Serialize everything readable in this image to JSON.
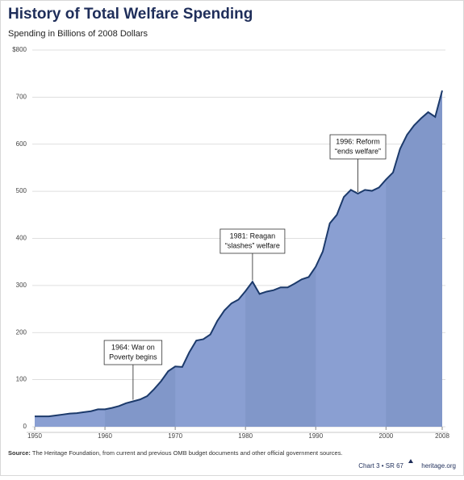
{
  "chart_data": {
    "type": "area",
    "title": "History of Total Welfare Spending",
    "subtitle": "Spending in Billions of 2008 Dollars",
    "x": [
      1950,
      1951,
      1952,
      1953,
      1954,
      1955,
      1956,
      1957,
      1958,
      1959,
      1960,
      1961,
      1962,
      1963,
      1964,
      1965,
      1966,
      1967,
      1968,
      1969,
      1970,
      1971,
      1972,
      1973,
      1974,
      1975,
      1976,
      1977,
      1978,
      1979,
      1980,
      1981,
      1982,
      1983,
      1984,
      1985,
      1986,
      1987,
      1988,
      1989,
      1990,
      1991,
      1992,
      1993,
      1994,
      1995,
      1996,
      1997,
      1998,
      1999,
      2000,
      2001,
      2002,
      2003,
      2004,
      2005,
      2006,
      2007,
      2008
    ],
    "values": [
      22,
      22,
      22,
      24,
      26,
      28,
      29,
      31,
      33,
      37,
      37,
      40,
      44,
      50,
      54,
      58,
      65,
      80,
      97,
      118,
      128,
      127,
      158,
      183,
      186,
      196,
      225,
      247,
      262,
      270,
      288,
      308,
      282,
      287,
      290,
      296,
      296,
      304,
      313,
      318,
      340,
      372,
      432,
      450,
      488,
      503,
      495,
      503,
      501,
      508,
      525,
      540,
      590,
      620,
      640,
      655,
      668,
      658,
      714
    ],
    "color": "#8a9fd2",
    "line_color": "#1c3a6b",
    "xlim": [
      1950,
      2008
    ],
    "xticks": [
      1950,
      1960,
      1970,
      1980,
      1990,
      2000,
      2008
    ],
    "ylim": [
      0,
      800
    ],
    "yticks": [
      0,
      100,
      200,
      300,
      400,
      500,
      600,
      700,
      {
        "value": 800,
        "label": "$800"
      }
    ],
    "grid": true,
    "annotations": [
      {
        "x": 1964,
        "lines": [
          "1964: War on",
          "Poverty begins"
        ]
      },
      {
        "x": 1981,
        "lines": [
          "1981: Reagan",
          "“slashes” welfare"
        ]
      },
      {
        "x": 1996,
        "lines": [
          "1996: Reform",
          "“ends welfare”"
        ]
      }
    ],
    "source_label": "Source:",
    "source": "The Heritage Foundation, from current and previous OMB budget documents and other official government sources.",
    "footer": "Chart 3 • SR 67",
    "site": "heritage.org"
  }
}
